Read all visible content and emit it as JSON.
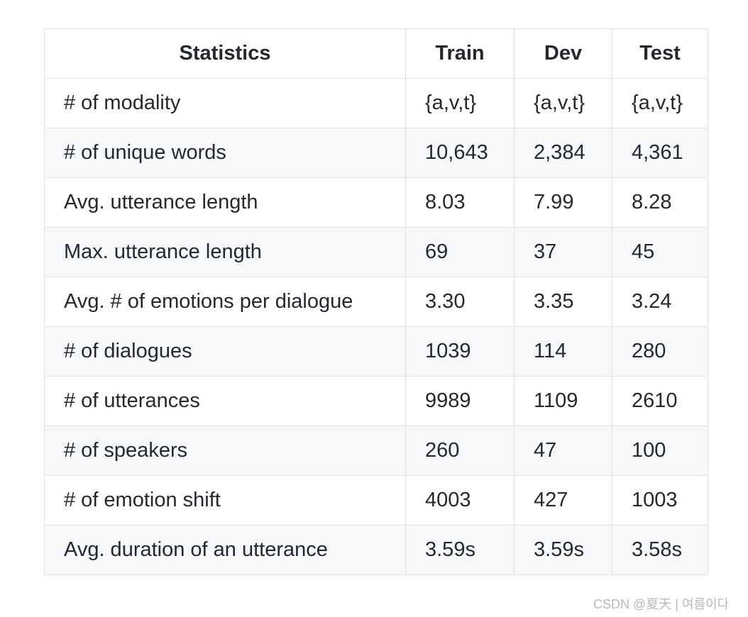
{
  "table": {
    "header": [
      "Statistics",
      "Train",
      "Dev",
      "Test"
    ],
    "rows": [
      [
        "# of modality",
        "{a,v,t}",
        "{a,v,t}",
        "{a,v,t}"
      ],
      [
        "# of unique words",
        "10,643",
        "2,384",
        "4,361"
      ],
      [
        "Avg. utterance length",
        "8.03",
        "7.99",
        "8.28"
      ],
      [
        "Max. utterance length",
        "69",
        "37",
        "45"
      ],
      [
        "Avg. # of emotions per dialogue",
        "3.30",
        "3.35",
        "3.24"
      ],
      [
        "# of dialogues",
        "1039",
        "114",
        "280"
      ],
      [
        "# of utterances",
        "9989",
        "1109",
        "2610"
      ],
      [
        "# of speakers",
        "260",
        "47",
        "100"
      ],
      [
        "# of emotion shift",
        "4003",
        "427",
        "1003"
      ],
      [
        "Avg. duration of an utterance",
        "3.59s",
        "3.59s",
        "3.58s"
      ]
    ]
  },
  "watermark": "CSDN @夏天 | 여름이다"
}
